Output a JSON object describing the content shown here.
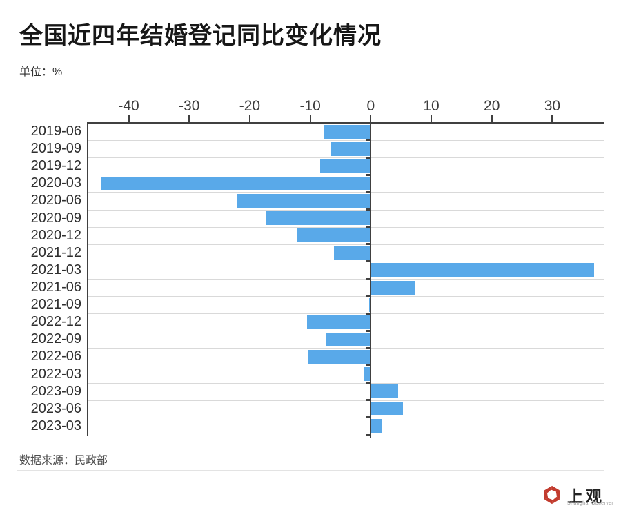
{
  "header": {
    "title": "全国近四年结婚登记同比变化情况",
    "unit_label": "单位：%"
  },
  "footer": {
    "source": "数据来源：民政部",
    "logo_cn": "上观",
    "logo_en": "Shanghai Observer"
  },
  "colors": {
    "bar": "#59A9E9",
    "axis": "#404040",
    "grid": "#D9D9D9",
    "logo_red": "#C23B2E"
  },
  "chart_data": {
    "type": "bar",
    "orientation": "horizontal",
    "title": "全国近四年结婚登记同比变化情况",
    "unit": "%",
    "categories": [
      "2019-06",
      "2019-09",
      "2019-12",
      "2020-03",
      "2020-06",
      "2020-09",
      "2020-12",
      "2021-12",
      "2021-03",
      "2021-06",
      "2021-09",
      "2022-12",
      "2022-09",
      "2022-06",
      "2022-03",
      "2023-09",
      "2023-06",
      "2023-03"
    ],
    "values": [
      -7.8,
      -6.7,
      -8.4,
      -44.6,
      -22.1,
      -17.3,
      -12.2,
      -6.1,
      36.9,
      7.4,
      -0.1,
      -10.5,
      -7.5,
      -10.4,
      -1.2,
      4.5,
      5.3,
      1.9
    ],
    "x_ticks": [
      -40,
      -30,
      -20,
      -10,
      0,
      10,
      20,
      30
    ],
    "xlim": [
      -46.9,
      38.5
    ],
    "bar_color": "#59A9E9",
    "grid": "horizontal-row-separators",
    "legend": "none",
    "axis_position": "top",
    "zero_line": true
  }
}
